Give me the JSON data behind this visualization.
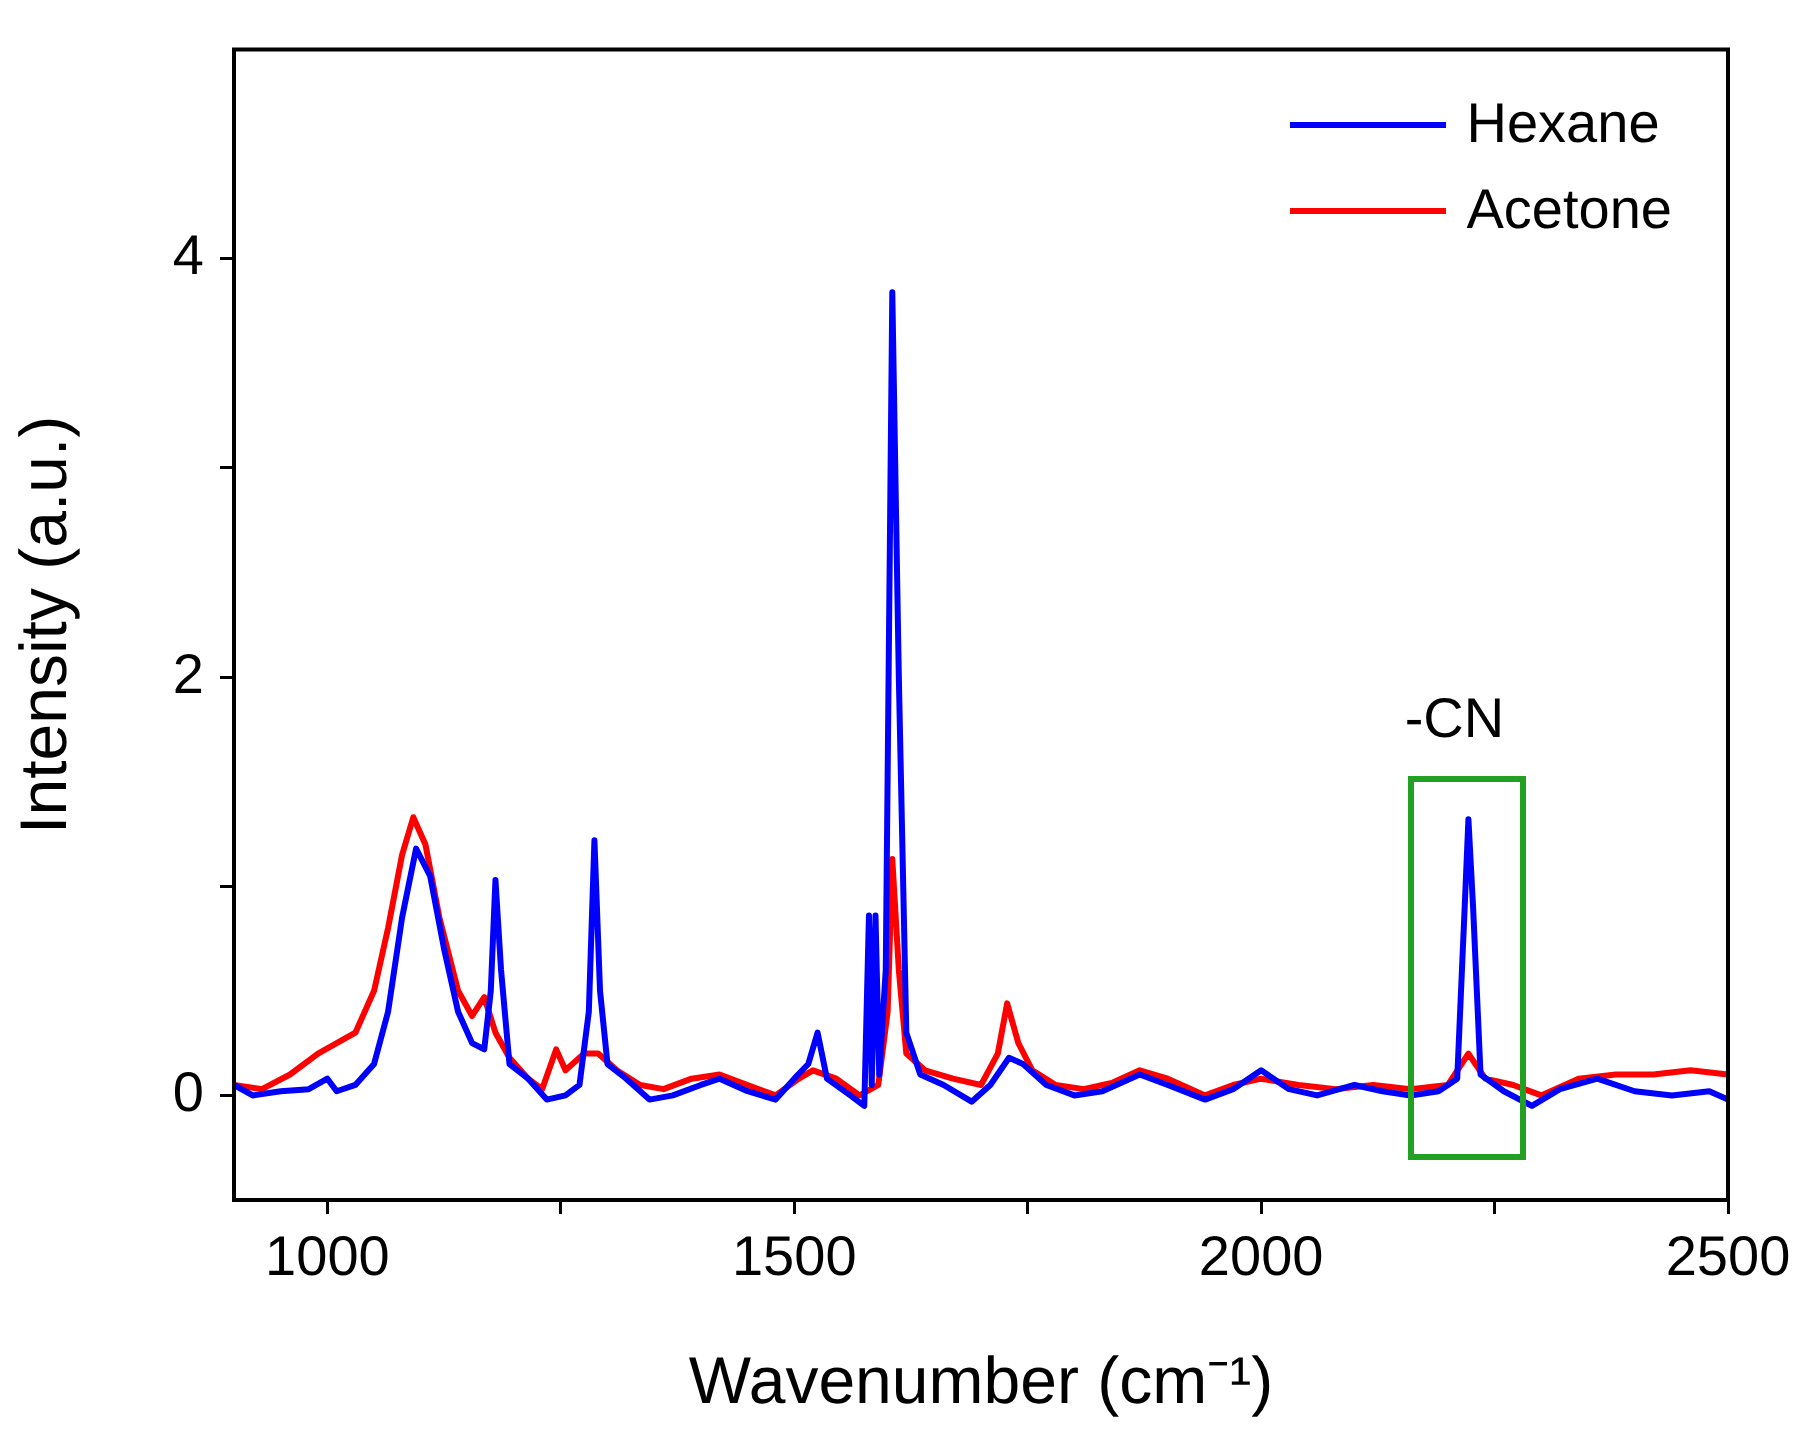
{
  "chart_data": {
    "type": "line",
    "xlabel": "Wavenumber (cm⁻¹)",
    "ylabel": "Intensity (a.u.)",
    "xlim": [
      900,
      2500
    ],
    "xticks": [
      1000,
      {
        "value": 1250,
        "label": null
      },
      1500,
      {
        "value": 1750,
        "label": null
      },
      2000,
      {
        "value": 2250,
        "label": null
      },
      2500
    ],
    "ylim": [
      -0.5,
      5
    ],
    "yticks": [
      0,
      {
        "value": 1,
        "label": null
      },
      2,
      {
        "value": 3,
        "label": null
      },
      4
    ],
    "grid": false,
    "legend": "top right",
    "marker": "none",
    "line_style": "solid",
    "annotations": [
      {
        "text": "-CN",
        "x": 2222,
        "y": 1.32
      }
    ],
    "series": [
      {
        "name": "Hexane",
        "color": "#0000ff",
        "x": [
          900,
          920,
          950,
          980,
          1000,
          1010,
          1030,
          1050,
          1065,
          1080,
          1095,
          1110,
          1125,
          1140,
          1155,
          1168,
          1175,
          1180,
          1186,
          1195,
          1215,
          1235,
          1255,
          1270,
          1280,
          1286,
          1292,
          1300,
          1320,
          1345,
          1370,
          1400,
          1420,
          1450,
          1480,
          1500,
          1515,
          1525,
          1535,
          1560,
          1575,
          1580,
          1583,
          1587,
          1591,
          1598,
          1605,
          1612,
          1620,
          1635,
          1660,
          1690,
          1710,
          1730,
          1745,
          1770,
          1800,
          1830,
          1870,
          1900,
          1940,
          1970,
          2000,
          2030,
          2060,
          2100,
          2130,
          2160,
          2190,
          2210,
          2218,
          2222,
          2227,
          2235,
          2260,
          2290,
          2320,
          2360,
          2400,
          2440,
          2480,
          2500
        ],
        "values": [
          0.05,
          0.0,
          0.02,
          0.03,
          0.08,
          0.02,
          0.05,
          0.15,
          0.4,
          0.85,
          1.18,
          1.05,
          0.7,
          0.4,
          0.25,
          0.22,
          0.5,
          1.03,
          0.6,
          0.15,
          0.08,
          -0.02,
          0.0,
          0.05,
          0.4,
          1.22,
          0.5,
          0.15,
          0.08,
          -0.02,
          0.0,
          0.05,
          0.08,
          0.02,
          -0.02,
          0.08,
          0.15,
          0.3,
          0.08,
          0.0,
          -0.05,
          0.86,
          0.05,
          0.86,
          0.1,
          0.6,
          3.84,
          2.0,
          0.3,
          0.1,
          0.05,
          -0.03,
          0.05,
          0.18,
          0.15,
          0.05,
          0.0,
          0.02,
          0.1,
          0.05,
          -0.02,
          0.03,
          0.12,
          0.03,
          0.0,
          0.05,
          0.02,
          0.0,
          0.02,
          0.08,
          0.9,
          1.32,
          0.9,
          0.1,
          0.02,
          -0.05,
          0.03,
          0.08,
          0.02,
          0.0,
          0.02,
          -0.02
        ]
      },
      {
        "name": "Acetone",
        "color": "#ff0000",
        "x": [
          900,
          930,
          960,
          990,
          1010,
          1030,
          1050,
          1065,
          1080,
          1092,
          1105,
          1120,
          1140,
          1155,
          1168,
          1180,
          1195,
          1215,
          1230,
          1245,
          1255,
          1275,
          1290,
          1310,
          1335,
          1360,
          1390,
          1420,
          1450,
          1480,
          1505,
          1520,
          1545,
          1570,
          1590,
          1600,
          1605,
          1612,
          1620,
          1640,
          1670,
          1700,
          1718,
          1728,
          1740,
          1755,
          1780,
          1810,
          1840,
          1870,
          1900,
          1940,
          1970,
          2000,
          2040,
          2080,
          2120,
          2160,
          2200,
          2222,
          2240,
          2270,
          2300,
          2340,
          2380,
          2420,
          2460,
          2500
        ],
        "values": [
          0.05,
          0.03,
          0.1,
          0.2,
          0.25,
          0.3,
          0.5,
          0.8,
          1.15,
          1.33,
          1.2,
          0.85,
          0.5,
          0.38,
          0.47,
          0.3,
          0.18,
          0.08,
          0.03,
          0.22,
          0.12,
          0.2,
          0.2,
          0.12,
          0.05,
          0.03,
          0.08,
          0.1,
          0.05,
          0.0,
          0.08,
          0.12,
          0.08,
          0.0,
          0.05,
          0.4,
          1.13,
          0.6,
          0.2,
          0.12,
          0.08,
          0.05,
          0.2,
          0.44,
          0.25,
          0.12,
          0.05,
          0.03,
          0.06,
          0.12,
          0.08,
          0.0,
          0.05,
          0.08,
          0.05,
          0.03,
          0.05,
          0.03,
          0.05,
          0.2,
          0.08,
          0.05,
          0.0,
          0.08,
          0.1,
          0.1,
          0.12,
          0.1
        ]
      }
    ]
  }
}
